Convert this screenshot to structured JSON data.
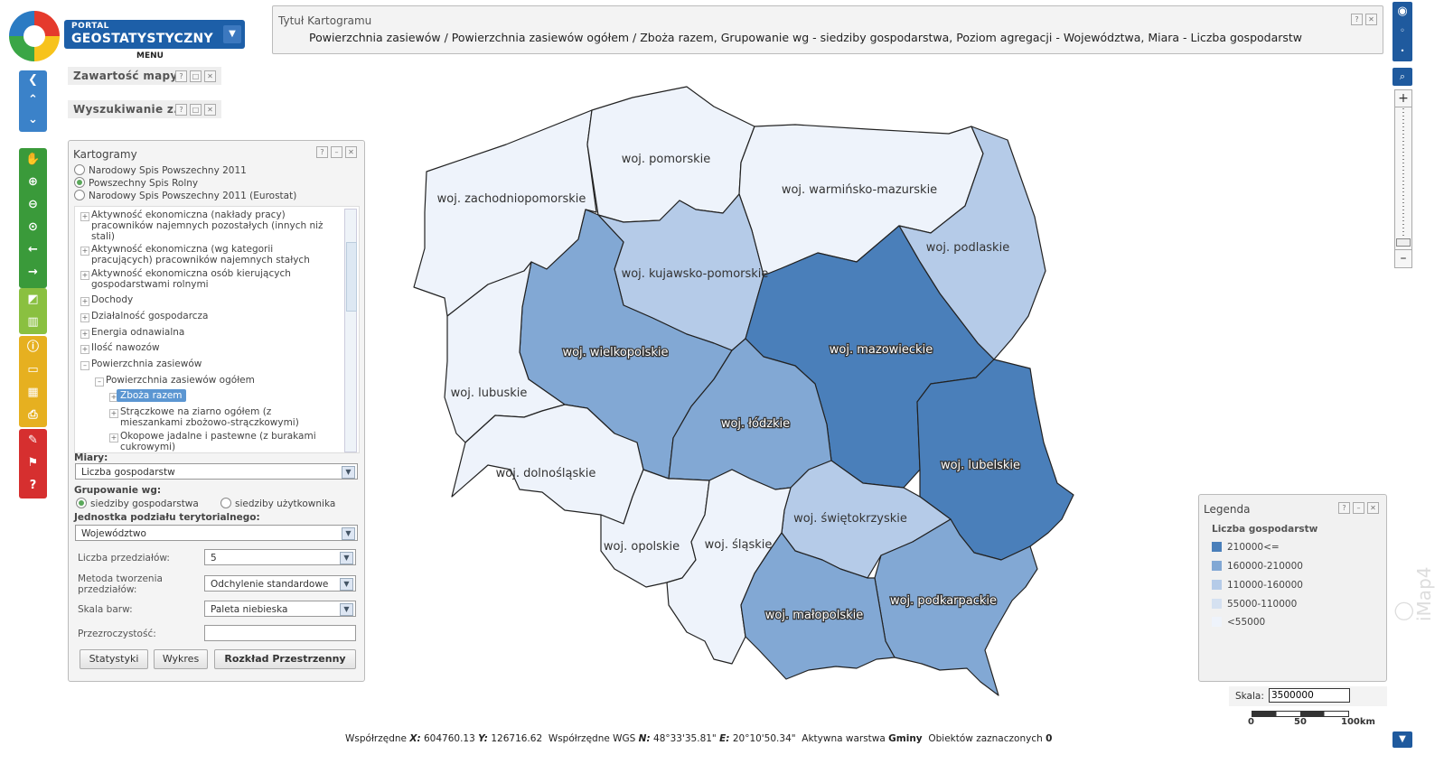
{
  "logo": {
    "line1": "PORTAL",
    "line2": "GEOSTATYSTYCZNY",
    "menu": "MENU"
  },
  "title": {
    "label": "Tytuł Kartogramu",
    "text": "Powierzchnia zasiewów / Powierzchnia zasiewów ogółem / Zboża razem, Grupowanie wg - siedziby gospodarstwa, Poziom agregacji - Województwa, Miara - Liczba gospodarstw"
  },
  "panels": {
    "map_content": "Zawartość mapy",
    "search": "Wyszukiwanie z..."
  },
  "kartogramy": {
    "title": "Kartogramy",
    "sources": [
      {
        "label": "Narodowy Spis Powszechny 2011",
        "selected": false
      },
      {
        "label": "Powszechny Spis Rolny",
        "selected": true
      },
      {
        "label": "Narodowy Spis Powszechny 2011 (Eurostat)",
        "selected": false
      }
    ],
    "tree": [
      {
        "label": "Aktywność ekonomiczna (nakłady pracy) pracowników najemnych pozostałych (innych niż stali)"
      },
      {
        "label": "Aktywność ekonomiczna (wg kategorii pracujących) pracowników najemnych stałych"
      },
      {
        "label": "Aktywność ekonomiczna osób kierujących gospodarstwami rolnymi"
      },
      {
        "label": "Dochody"
      },
      {
        "label": "Działalność gospodarcza"
      },
      {
        "label": "Energia odnawialna"
      },
      {
        "label": "Ilość nawozów"
      },
      {
        "label": "Powierzchnia zasiewów"
      },
      {
        "label": "Powierzchnia zasiewów ogółem"
      },
      {
        "label": "Zboża razem"
      },
      {
        "label": "Strączkowe na ziarno ogółem (z mieszankami zbożowo-strączkowymi)"
      },
      {
        "label": "Okopowe jadalne i pastewne (z burakami cukrowymi)"
      }
    ],
    "measures_label": "Miary:",
    "measure": "Liczba gospodarstw",
    "grouping_label": "Grupowanie wg:",
    "grouping": [
      {
        "label": "siedziby gospodarstwa",
        "selected": true
      },
      {
        "label": "siedziby użytkownika",
        "selected": false
      }
    ],
    "unit_label": "Jednostka podziału terytorialnego:",
    "unit": "Województwo",
    "intervals_label": "Liczba przedziałów:",
    "intervals": "5",
    "method_label": "Metoda tworzenia przedziałów:",
    "method": "Odchylenie standardowe",
    "color_label": "Skala barw:",
    "color": "Paleta niebieska",
    "opacity_label": "Przezroczystość:",
    "buttons": [
      "Statystyki",
      "Wykres",
      "Rozkład Przestrzenny"
    ]
  },
  "regions": [
    {
      "name": "woj. zachodniopomorskie",
      "class": 0
    },
    {
      "name": "woj. pomorskie",
      "class": 0
    },
    {
      "name": "woj. warmińsko-mazurskie",
      "class": 0
    },
    {
      "name": "woj. podlaskie",
      "class": 2
    },
    {
      "name": "woj. kujawsko-pomorskie",
      "class": 2
    },
    {
      "name": "woj. wielkopolskie",
      "class": 3
    },
    {
      "name": "woj. mazowieckie",
      "class": 4
    },
    {
      "name": "woj. lubuskie",
      "class": 0
    },
    {
      "name": "woj. łódzkie",
      "class": 3
    },
    {
      "name": "woj. lubelskie",
      "class": 4
    },
    {
      "name": "woj. dolnośląskie",
      "class": 0
    },
    {
      "name": "woj. świętokrzyskie",
      "class": 2
    },
    {
      "name": "woj. opolskie",
      "class": 0
    },
    {
      "name": "woj. śląskie",
      "class": 0
    },
    {
      "name": "woj. podkarpackie",
      "class": 3
    },
    {
      "name": "woj. małopolskie",
      "class": 3
    }
  ],
  "legend": {
    "title": "Legenda",
    "subtitle": "Liczba gospodarstw",
    "items": [
      {
        "label": "210000<=",
        "color": "#4a7fba"
      },
      {
        "label": "160000-210000",
        "color": "#82a8d4"
      },
      {
        "label": "110000-160000",
        "color": "#b5cbe8"
      },
      {
        "label": "55000-110000",
        "color": "#d5e1f1"
      },
      {
        "label": "<55000",
        "color": "#eef3fb"
      }
    ]
  },
  "scale": {
    "label": "Skala:",
    "value": "3500000",
    "ticks": [
      "0",
      "50",
      "100km"
    ]
  },
  "status": {
    "coord_label": "Współrzędne",
    "x_label": "X:",
    "x": "604760.13",
    "y_label": "Y:",
    "y": "126716.62",
    "wgs_label": "Współrzędne WGS",
    "n_label": "N:",
    "n": "48°33'35.81\"",
    "e_label": "E:",
    "e": "20°10'50.34\"",
    "layer_label": "Aktywna warstwa",
    "layer": "Gminy",
    "selected_label": "Obiektów zaznaczonych",
    "selected": "0"
  }
}
